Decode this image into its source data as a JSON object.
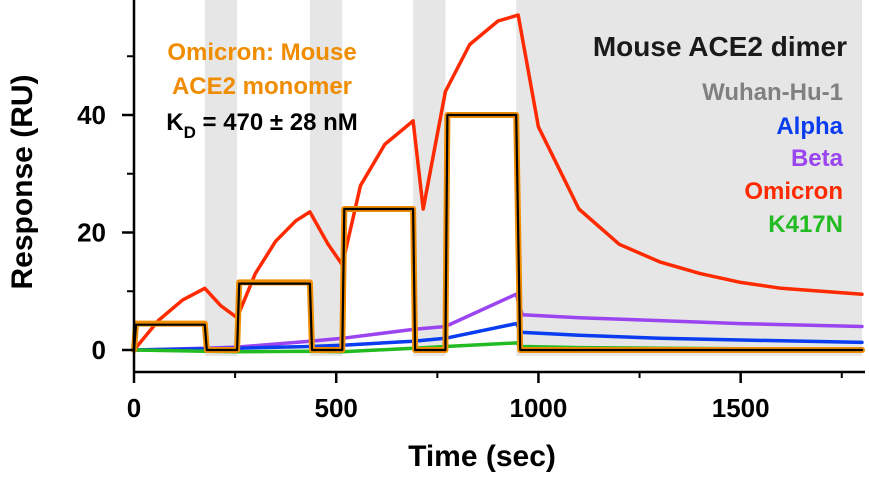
{
  "chart_data": {
    "type": "line",
    "title": "",
    "xlabel": "Time (sec)",
    "ylabel": "Response (RU)",
    "xlim": [
      -30,
      1800
    ],
    "ylim": [
      -3,
      58
    ],
    "x_ticks": [
      0,
      500,
      1000,
      1500
    ],
    "y_ticks": [
      0,
      20,
      40
    ],
    "grid": false,
    "injection_windows": [
      [
        175,
        255
      ],
      [
        435,
        515
      ],
      [
        690,
        770
      ],
      [
        945,
        1800
      ]
    ],
    "legend": {
      "title": "Mouse ACE2 dimer",
      "placement": "top-right",
      "entries": [
        {
          "name": "Wuhan-Hu-1",
          "color": "#808080"
        },
        {
          "name": "Alpha",
          "color": "#0a3cf0"
        },
        {
          "name": "Beta",
          "color": "#9b45f0"
        },
        {
          "name": "Omicron",
          "color": "#ff2a00"
        },
        {
          "name": "K417N",
          "color": "#22bb22"
        }
      ]
    },
    "annotation": {
      "line1": "Omicron: Mouse",
      "line2": "ACE2 monomer",
      "kd_prefix": "K",
      "kd_sub": "D",
      "kd_value": " = 470 ± 28 nM",
      "color": "#f08c00",
      "kd_color": "#000000"
    },
    "series": [
      {
        "name": "Omicron",
        "color": "#ff2a00",
        "x": [
          0,
          60,
          120,
          175,
          215,
          255,
          300,
          350,
          400,
          435,
          480,
          515,
          560,
          620,
          690,
          715,
          770,
          830,
          900,
          950,
          1000,
          1100,
          1200,
          1300,
          1400,
          1500,
          1600,
          1700,
          1800
        ],
        "y": [
          0,
          5,
          8.5,
          10.5,
          7.5,
          5.5,
          13,
          18.5,
          22,
          23.5,
          18,
          14.5,
          28,
          35,
          39,
          24,
          44,
          52,
          56,
          57,
          38,
          24,
          18,
          15,
          13,
          11.5,
          10.5,
          10,
          9.5
        ]
      },
      {
        "name": "Beta",
        "color": "#9b45f0",
        "x": [
          0,
          175,
          255,
          435,
          515,
          690,
          770,
          945,
          960,
          1100,
          1300,
          1500,
          1800
        ],
        "y": [
          0,
          0.3,
          0.5,
          1.5,
          2,
          3.5,
          4,
          9.5,
          6,
          5.5,
          5,
          4.5,
          4
        ]
      },
      {
        "name": "Alpha",
        "color": "#0a3cf0",
        "x": [
          0,
          175,
          255,
          435,
          515,
          690,
          770,
          945,
          960,
          1100,
          1300,
          1500,
          1800
        ],
        "y": [
          0,
          0.2,
          0.3,
          0.6,
          0.8,
          1.5,
          2,
          4.5,
          3,
          2.5,
          2,
          1.7,
          1.3
        ]
      },
      {
        "name": "K417N",
        "color": "#22bb22",
        "x": [
          0,
          175,
          255,
          435,
          515,
          690,
          770,
          945,
          960,
          1100,
          1300,
          1500,
          1800
        ],
        "y": [
          0,
          -0.2,
          -0.3,
          -0.2,
          -0.3,
          0.3,
          0.6,
          1.2,
          0.6,
          0.4,
          0.3,
          0.2,
          0.2
        ]
      },
      {
        "name": "Omicron: Mouse ACE2 monomer",
        "color": "#f08c00",
        "x": [
          0,
          5,
          175,
          180,
          255,
          260,
          435,
          440,
          515,
          520,
          690,
          695,
          770,
          775,
          945,
          955,
          1800
        ],
        "y": [
          0,
          4.5,
          4.5,
          0,
          0,
          11.5,
          11.5,
          0,
          0,
          24,
          24,
          0,
          0,
          40,
          40,
          0,
          0
        ]
      },
      {
        "name": "fit",
        "color": "#000000",
        "x": [
          0,
          5,
          175,
          180,
          255,
          260,
          435,
          440,
          515,
          520,
          690,
          695,
          770,
          775,
          945,
          955,
          1800
        ],
        "y": [
          0,
          4.3,
          4.3,
          0,
          0,
          11.3,
          11.3,
          0,
          0,
          24,
          24,
          0,
          0,
          40,
          40,
          0,
          0
        ]
      }
    ]
  }
}
